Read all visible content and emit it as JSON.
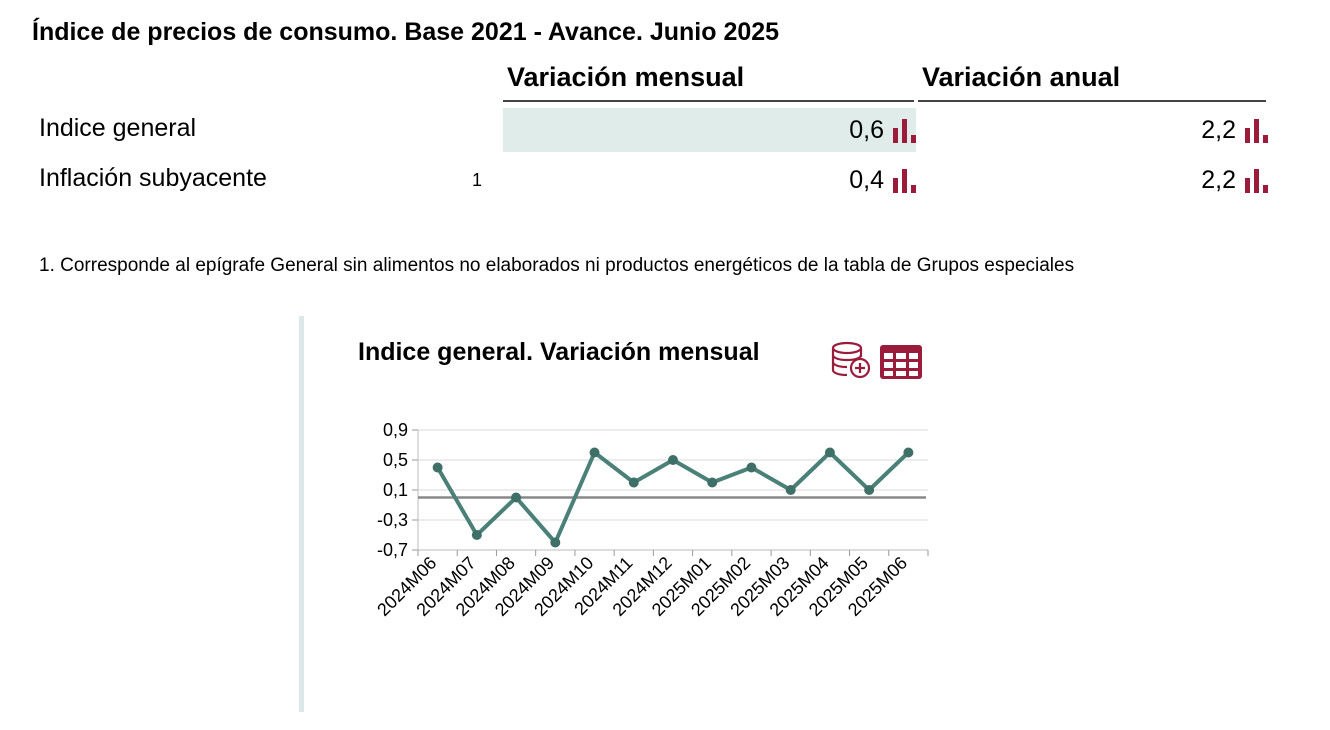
{
  "title": "Índice de precios de consumo. Base 2021 - Avance. Junio 2025",
  "table": {
    "headers": [
      "Variación mensual",
      "Variación anual"
    ],
    "rows": [
      {
        "label": "Indice general",
        "note": "",
        "mensual": "0,6",
        "anual": "2,2"
      },
      {
        "label": "Inflación subyacente",
        "note": "1",
        "mensual": "0,4",
        "anual": "2,2"
      }
    ]
  },
  "footnote": "1. Corresponde al epígrafe General sin alimentos no elaborados ni productos energéticos de la tabla de Grupos especiales",
  "colors": {
    "accent": "#9b1b3b",
    "line": "#4a8078",
    "highlight": "#dfecea"
  },
  "icons": {
    "row_chart": "bar-chart-icon",
    "database": "database-add-icon",
    "table": "table-icon"
  },
  "chart_data": {
    "type": "line",
    "title": "Indice general. Variación mensual",
    "categories": [
      "2024M06",
      "2024M07",
      "2024M08",
      "2024M09",
      "2024M10",
      "2024M11",
      "2024M12",
      "2025M01",
      "2025M02",
      "2025M03",
      "2025M04",
      "2025M05",
      "2025M06"
    ],
    "series": [
      {
        "values": [
          0.4,
          -0.5,
          0.0,
          -0.6,
          0.6,
          0.2,
          0.5,
          0.2,
          0.4,
          0.1,
          0.6,
          0.1,
          0.6
        ]
      }
    ],
    "yticks": [
      "0,9",
      "0,5",
      "0,1",
      "-0,3",
      "-0,7"
    ],
    "ytick_values": [
      0.9,
      0.5,
      0.1,
      -0.3,
      -0.7
    ],
    "ylim": [
      -0.7,
      0.9
    ],
    "reference_line": 0,
    "grid": true,
    "legend": "none"
  }
}
